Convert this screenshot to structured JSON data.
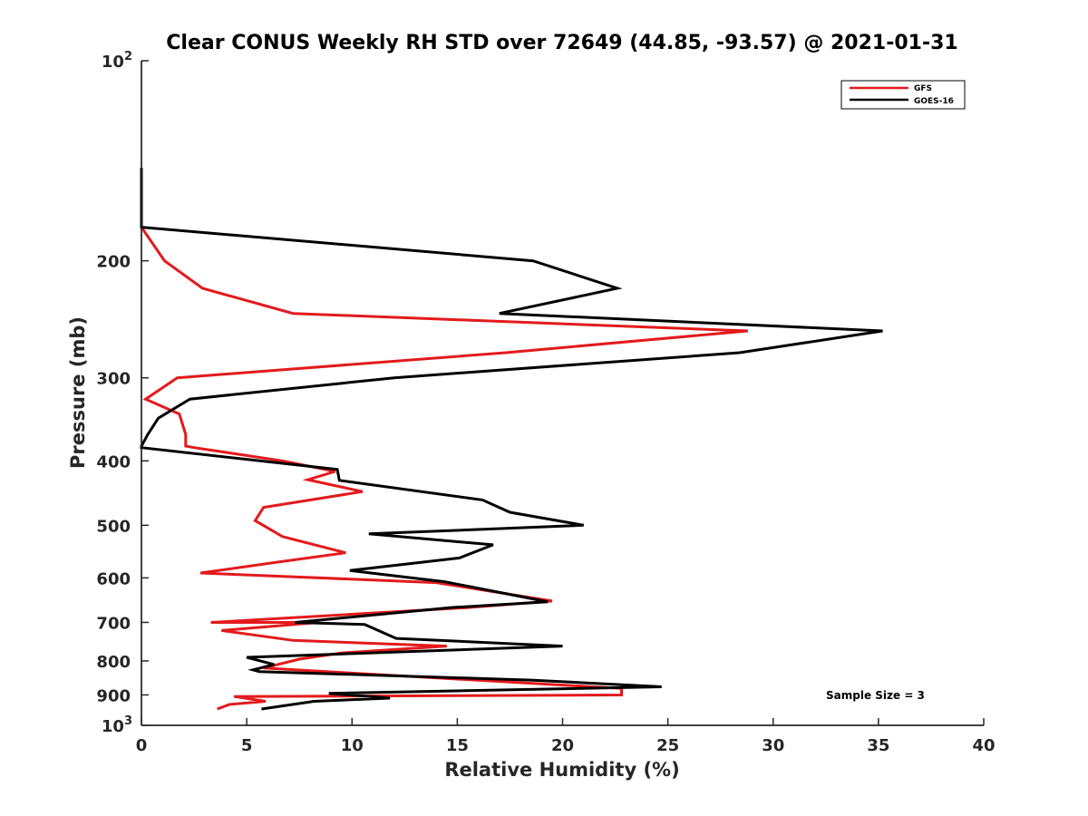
{
  "chart_data": {
    "type": "line",
    "title": "Clear CONUS Weekly RH STD over 72649 (44.85, -93.57) @ 2021-01-31",
    "xlabel": "Relative Humidity (%)",
    "ylabel": "Pressure (mb)",
    "xlim": [
      0,
      40
    ],
    "ylim": [
      100,
      1000
    ],
    "y_scale": "log",
    "y_reversed": true,
    "x_ticks": [
      "0",
      "5",
      "10",
      "15",
      "20",
      "25",
      "30",
      "35",
      "40"
    ],
    "y_ticks": [
      {
        "value": 200,
        "label": "200"
      },
      {
        "value": 300,
        "label": "300"
      },
      {
        "value": 400,
        "label": "400"
      },
      {
        "value": 500,
        "label": "500"
      },
      {
        "value": 600,
        "label": "600"
      },
      {
        "value": 700,
        "label": "700"
      },
      {
        "value": 800,
        "label": "800"
      },
      {
        "value": 900,
        "label": "900"
      }
    ],
    "y_tick_powers": [
      {
        "value": 100,
        "base": "10",
        "exp": "2"
      },
      {
        "value": 1000,
        "base": "10",
        "exp": "3"
      }
    ],
    "grid": false,
    "legend_position": "top-right",
    "annotation": "Sample Size = 3",
    "series": [
      {
        "name": "GFS",
        "color": "#e31a1c",
        "x": [
          0,
          0,
          0,
          1.1,
          2.9,
          7.2,
          28.8,
          17.3,
          1.7,
          0.2,
          1.8,
          2.1,
          2.1,
          2.5,
          6.7,
          9.2,
          7.9,
          10.5,
          5.8,
          5.4,
          6.7,
          9.7,
          6.5,
          2.8,
          14.0,
          19.5,
          15.5,
          3.3,
          8.4,
          3.8,
          7.2,
          14.5,
          9.5,
          7.5,
          5.8,
          22.8,
          22.8,
          4.4,
          5.9,
          4.2,
          3.6
        ],
        "y": [
          145,
          170,
          178,
          200,
          220,
          240,
          255,
          275,
          300,
          323,
          340,
          365,
          380,
          382,
          400,
          415,
          427,
          445,
          470,
          492,
          520,
          550,
          568,
          590,
          610,
          650,
          665,
          700,
          700,
          720,
          745,
          760,
          778,
          795,
          820,
          880,
          900,
          905,
          920,
          930,
          945
        ]
      },
      {
        "name": "GOES-16",
        "color": "#000000",
        "x": [
          0,
          0,
          18.6,
          22.6,
          17.0,
          35.2,
          28.4,
          12.0,
          2.3,
          0.8,
          0.3,
          0,
          0,
          9.3,
          9.4,
          16.2,
          17.5,
          21.0,
          10.8,
          16.7,
          15.1,
          9.9,
          14.4,
          18.0,
          19.3,
          14.7,
          7.3,
          10.6,
          12.1,
          20.0,
          5.0,
          6.3,
          5.3,
          5.6,
          18.5,
          24.7,
          8.9,
          11.8,
          8.2,
          5.7
        ],
        "y": [
          145,
          178,
          200,
          220,
          240,
          255,
          275,
          300,
          323,
          345,
          365,
          380,
          382,
          412,
          428,
          458,
          478,
          500,
          515,
          535,
          560,
          585,
          608,
          640,
          652,
          665,
          700,
          705,
          740,
          760,
          790,
          810,
          825,
          830,
          855,
          875,
          895,
          910,
          920,
          945
        ]
      }
    ]
  }
}
